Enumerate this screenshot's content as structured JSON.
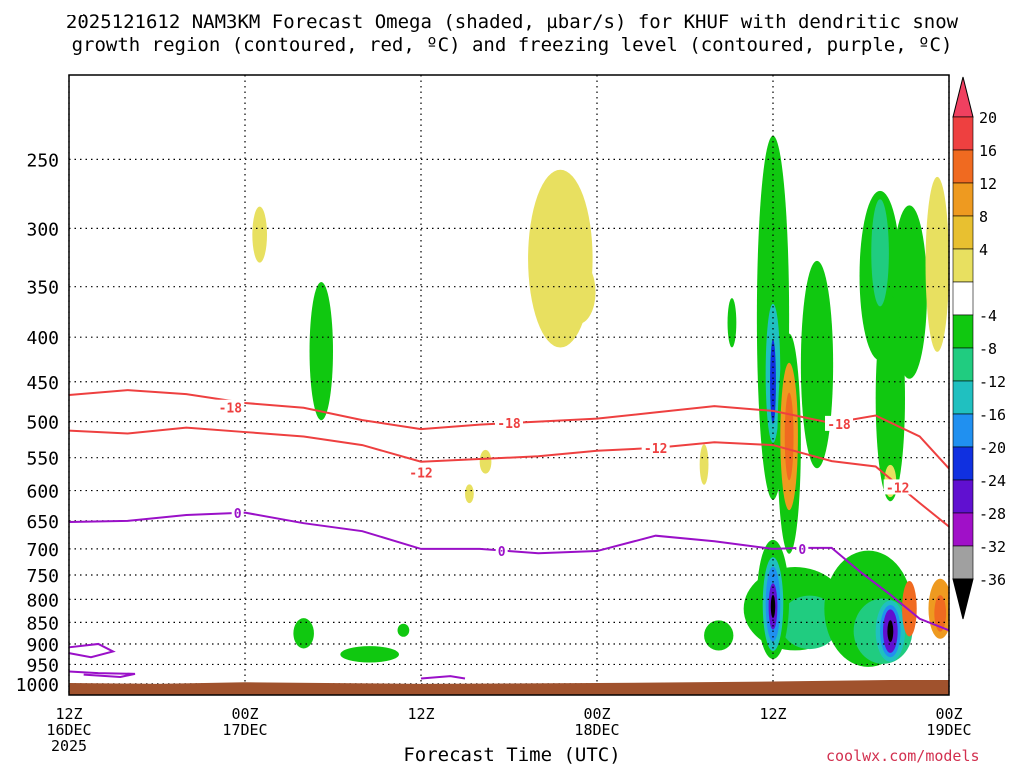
{
  "title_line1": "2025121612 NAM3KM Forecast Omega (shaded, µbar/s) for KHUF with dendritic snow",
  "title_line2": "growth region (contoured, red, ºC) and freezing level (contoured, purple, ºC)",
  "xlabel": "Forecast Time (UTC)",
  "credit": "coolwx.com/models",
  "chart_data": {
    "type": "heatmap",
    "title": "2025121612 NAM3KM Forecast Omega (shaded, µbar/s) for KHUF with dendritic snow growth region (contoured, red, ºC) and freezing level (contoured, purple, ºC)",
    "xlabel": "Forecast Time (UTC)",
    "ylabel": "",
    "x_unit": "hours from 2025-12-16 12Z",
    "xlim": [
      0,
      60
    ],
    "ylim": [
      1030,
      200
    ],
    "y_ticks": [
      250,
      300,
      350,
      400,
      450,
      500,
      550,
      600,
      650,
      700,
      750,
      800,
      850,
      900,
      950,
      1000
    ],
    "x_ticks": [
      {
        "x": 0,
        "line1": "12Z",
        "line2": "16DEC",
        "line3": "2025"
      },
      {
        "x": 12,
        "line1": "00Z",
        "line2": "17DEC",
        "line3": ""
      },
      {
        "x": 24,
        "line1": "12Z",
        "line2": "",
        "line3": ""
      },
      {
        "x": 36,
        "line1": "00Z",
        "line2": "18DEC",
        "line3": ""
      },
      {
        "x": 48,
        "line1": "12Z",
        "line2": "",
        "line3": ""
      },
      {
        "x": 60,
        "line1": "00Z",
        "line2": "19DEC",
        "line3": ""
      }
    ],
    "grid": true,
    "colorbar": {
      "levels": [
        "20",
        "16",
        "12",
        "8",
        "4",
        "-4",
        "-8",
        "-12",
        "-16",
        "-20",
        "-24",
        "-28",
        "-32",
        "-36"
      ],
      "colors": [
        "#f04060",
        "#ee4040",
        "#f06a20",
        "#ee9a20",
        "#e8c030",
        "#e8e060",
        "#ffffff",
        "#10c810",
        "#20cc80",
        "#20c0c0",
        "#2090f0",
        "#1030e0",
        "#6010d0",
        "#a010c8",
        "#a0a0a0",
        "#000000"
      ]
    },
    "omega_regions": [
      {
        "x": 13.0,
        "p": 305,
        "w": 0.5,
        "h": 45,
        "color": "#e8e060"
      },
      {
        "x": 17.2,
        "p": 415,
        "w": 0.8,
        "h": 150,
        "color": "#10c810"
      },
      {
        "x": 33.5,
        "p": 325,
        "w": 2.2,
        "h": 150,
        "color": "#e8e060"
      },
      {
        "x": 34.7,
        "p": 355,
        "w": 1.2,
        "h": 60,
        "color": "#e8e060"
      },
      {
        "x": 20.5,
        "p": 925,
        "w": 2.0,
        "h": 40,
        "color": "#10c810"
      },
      {
        "x": 16.0,
        "p": 875,
        "w": 0.7,
        "h": 70,
        "color": "#10c810"
      },
      {
        "x": 22.8,
        "p": 868,
        "w": 0.4,
        "h": 30,
        "color": "#10c810"
      },
      {
        "x": 28.4,
        "p": 556,
        "w": 0.4,
        "h": 35,
        "color": "#e8e060"
      },
      {
        "x": 27.3,
        "p": 605,
        "w": 0.3,
        "h": 30,
        "color": "#e8e060"
      },
      {
        "x": 48.0,
        "p": 380,
        "w": 1.1,
        "h": 340,
        "color": "#10c810"
      },
      {
        "x": 48.0,
        "p": 440,
        "w": 0.5,
        "h": 160,
        "color": "#20c0c0"
      },
      {
        "x": 48.0,
        "p": 450,
        "w": 0.2,
        "h": 100,
        "color": "#1030e0"
      },
      {
        "x": 49.1,
        "p": 530,
        "w": 0.8,
        "h": 300,
        "color": "#10c810"
      },
      {
        "x": 49.1,
        "p": 520,
        "w": 0.6,
        "h": 200,
        "color": "#ee9a20"
      },
      {
        "x": 49.1,
        "p": 520,
        "w": 0.3,
        "h": 120,
        "color": "#f06a20"
      },
      {
        "x": 51.0,
        "p": 430,
        "w": 1.1,
        "h": 230,
        "color": "#10c810"
      },
      {
        "x": 55.3,
        "p": 340,
        "w": 1.4,
        "h": 150,
        "color": "#10c810"
      },
      {
        "x": 55.3,
        "p": 320,
        "w": 0.6,
        "h": 90,
        "color": "#20cc80"
      },
      {
        "x": 57.3,
        "p": 355,
        "w": 1.2,
        "h": 160,
        "color": "#10c810"
      },
      {
        "x": 59.2,
        "p": 330,
        "w": 0.8,
        "h": 150,
        "color": "#e8e060"
      },
      {
        "x": 56.0,
        "p": 470,
        "w": 1.0,
        "h": 250,
        "color": "#10c810"
      },
      {
        "x": 45.2,
        "p": 385,
        "w": 0.3,
        "h": 50,
        "color": "#10c810"
      },
      {
        "x": 49.5,
        "p": 820,
        "w": 3.5,
        "h": 180,
        "color": "#10c810"
      },
      {
        "x": 50.5,
        "p": 850,
        "w": 2.0,
        "h": 120,
        "color": "#20cc80"
      },
      {
        "x": 48.0,
        "p": 800,
        "w": 1.1,
        "h": 250,
        "color": "#10c810"
      },
      {
        "x": 48.0,
        "p": 810,
        "w": 0.7,
        "h": 200,
        "color": "#20c0c0"
      },
      {
        "x": 48.0,
        "p": 810,
        "w": 0.5,
        "h": 160,
        "color": "#2090f0"
      },
      {
        "x": 48.0,
        "p": 815,
        "w": 0.3,
        "h": 100,
        "color": "#6010d0"
      },
      {
        "x": 48.0,
        "p": 815,
        "w": 0.15,
        "h": 50,
        "color": "#000000"
      },
      {
        "x": 54.5,
        "p": 820,
        "w": 3.0,
        "h": 250,
        "color": "#10c810"
      },
      {
        "x": 55.5,
        "p": 870,
        "w": 2.0,
        "h": 150,
        "color": "#20cc80"
      },
      {
        "x": 56.0,
        "p": 870,
        "w": 1.0,
        "h": 140,
        "color": "#20c0c0"
      },
      {
        "x": 56.0,
        "p": 870,
        "w": 0.7,
        "h": 120,
        "color": "#2090f0"
      },
      {
        "x": 56.0,
        "p": 870,
        "w": 0.5,
        "h": 100,
        "color": "#6010d0"
      },
      {
        "x": 56.0,
        "p": 870,
        "w": 0.2,
        "h": 50,
        "color": "#000000"
      },
      {
        "x": 56.0,
        "p": 585,
        "w": 0.4,
        "h": 50,
        "color": "#e8e060"
      },
      {
        "x": 57.3,
        "p": 820,
        "w": 0.5,
        "h": 120,
        "color": "#f06a20"
      },
      {
        "x": 59.4,
        "p": 820,
        "w": 0.8,
        "h": 130,
        "color": "#ee9a20"
      },
      {
        "x": 59.4,
        "p": 830,
        "w": 0.4,
        "h": 80,
        "color": "#f06a20"
      },
      {
        "x": 44.3,
        "p": 880,
        "w": 1.0,
        "h": 70,
        "color": "#10c810"
      },
      {
        "x": 43.3,
        "p": 560,
        "w": 0.3,
        "h": 60,
        "color": "#e8e060"
      }
    ],
    "contours_red": [
      {
        "label": "-18",
        "label_x": 11,
        "label_p": 482,
        "points": [
          [
            0,
            466
          ],
          [
            4,
            460
          ],
          [
            8,
            465
          ],
          [
            12,
            476
          ],
          [
            16,
            482
          ],
          [
            20,
            498
          ],
          [
            24,
            510
          ],
          [
            28,
            504
          ],
          [
            32,
            500
          ],
          [
            36,
            496
          ],
          [
            40,
            488
          ],
          [
            44,
            480
          ],
          [
            48,
            486
          ],
          [
            52,
            502
          ],
          [
            55,
            492
          ],
          [
            58,
            520
          ],
          [
            60,
            566
          ]
        ]
      },
      {
        "label": "-18",
        "label_x": 30,
        "label_p": 502,
        "points": []
      },
      {
        "label": "-18",
        "label_x": 52.5,
        "label_p": 503,
        "points": []
      },
      {
        "label": "-12",
        "label_x": 0,
        "label_p": 0,
        "points": [
          [
            0,
            512
          ],
          [
            4,
            516
          ],
          [
            8,
            508
          ],
          [
            12,
            514
          ],
          [
            16,
            520
          ],
          [
            20,
            532
          ],
          [
            24,
            556
          ],
          [
            28,
            552
          ],
          [
            32,
            548
          ],
          [
            36,
            540
          ],
          [
            40,
            536
          ],
          [
            44,
            528
          ],
          [
            48,
            532
          ],
          [
            52,
            555
          ],
          [
            55,
            563
          ],
          [
            58,
            620
          ],
          [
            60,
            660
          ]
        ]
      },
      {
        "label": "-12",
        "label_x": 24,
        "label_p": 572,
        "points": []
      },
      {
        "label": "-12",
        "label_x": 40,
        "label_p": 536,
        "points": []
      },
      {
        "label": "-12",
        "label_x": 56.5,
        "label_p": 595,
        "points": []
      }
    ],
    "contours_purple": [
      {
        "label": "0",
        "label_x": 11.5,
        "label_p": 637,
        "points": [
          [
            0,
            652
          ],
          [
            4,
            650
          ],
          [
            8,
            640
          ],
          [
            12,
            636
          ],
          [
            16,
            654
          ],
          [
            20,
            668
          ],
          [
            24,
            700
          ],
          [
            28,
            700
          ],
          [
            32,
            708
          ],
          [
            36,
            704
          ],
          [
            40,
            676
          ],
          [
            44,
            686
          ],
          [
            48,
            700
          ],
          [
            50,
            698
          ],
          [
            52,
            698
          ],
          [
            54,
            745
          ],
          [
            56,
            790
          ],
          [
            58,
            842
          ],
          [
            60,
            868
          ]
        ]
      },
      {
        "label": "0",
        "label_x": 29.5,
        "label_p": 704,
        "points": []
      },
      {
        "label": "0",
        "label_x": 50,
        "label_p": 700,
        "points": []
      },
      {
        "label": "",
        "label_x": 0,
        "label_p": 0,
        "points": [
          [
            0,
            908
          ],
          [
            2,
            900
          ],
          [
            3,
            918
          ],
          [
            1.5,
            932
          ],
          [
            0,
            922
          ]
        ]
      },
      {
        "label": "",
        "label_x": 0,
        "label_p": 0,
        "points": [
          [
            0,
            968
          ],
          [
            2,
            972
          ],
          [
            4.5,
            974
          ],
          [
            3.5,
            982
          ],
          [
            1,
            976
          ]
        ]
      },
      {
        "label": "",
        "label_x": 0,
        "label_p": 0,
        "points": [
          [
            24,
            986
          ],
          [
            26,
            980
          ],
          [
            27,
            986
          ]
        ]
      }
    ],
    "terrain": {
      "color": "#a0522d",
      "surface_p": [
        [
          0,
          998
        ],
        [
          6,
          1000
        ],
        [
          12,
          996
        ],
        [
          24,
          1000
        ],
        [
          36,
          998
        ],
        [
          48,
          994
        ],
        [
          56,
          990
        ],
        [
          60,
          990
        ]
      ],
      "bottom_p": 1030
    }
  }
}
